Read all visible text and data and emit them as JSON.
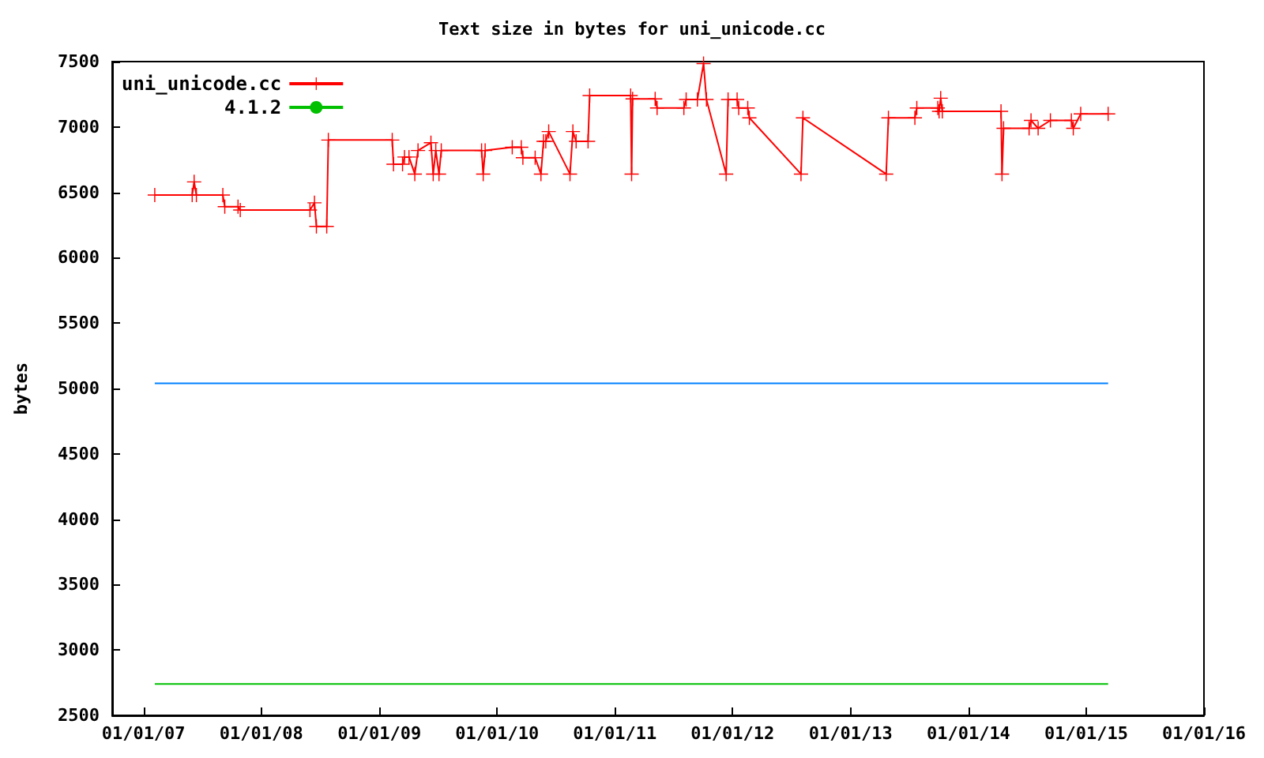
{
  "chart_data": {
    "type": "line",
    "title": "Text size in bytes for uni_unicode.cc",
    "ylabel": "bytes",
    "legend": "top left",
    "grid": false,
    "xlim": [
      "2006-09-26",
      "2016-01-01"
    ],
    "xticks": [
      {
        "value": "2007-01-01",
        "label": "01/01/07"
      },
      {
        "value": "2008-01-01",
        "label": "01/01/08"
      },
      {
        "value": "2009-01-01",
        "label": "01/01/09"
      },
      {
        "value": "2010-01-01",
        "label": "01/01/10"
      },
      {
        "value": "2011-01-01",
        "label": "01/01/11"
      },
      {
        "value": "2012-01-01",
        "label": "01/01/12"
      },
      {
        "value": "2013-01-01",
        "label": "01/01/13"
      },
      {
        "value": "2014-01-01",
        "label": "01/01/14"
      },
      {
        "value": "2015-01-01",
        "label": "01/01/15"
      },
      {
        "value": "2016-01-01",
        "label": "01/01/16"
      }
    ],
    "ylim": [
      2500,
      7500
    ],
    "yticks": [
      2500,
      3000,
      3500,
      4000,
      4500,
      5000,
      5500,
      6000,
      6500,
      7000,
      7500
    ],
    "series": [
      {
        "name": "uni_unicode.cc",
        "color": "#ff0000",
        "marker": "cross",
        "x": [
          "2007-02-05",
          "2007-06-01",
          "2007-06-07",
          "2007-06-14",
          "2007-09-04",
          "2007-09-10",
          "2007-10-21",
          "2007-10-28",
          "2008-05-31",
          "2008-06-14",
          "2008-06-20",
          "2008-07-22",
          "2008-07-27",
          "2009-02-10",
          "2009-02-14",
          "2009-03-14",
          "2009-03-20",
          "2009-04-03",
          "2009-04-21",
          "2009-05-01",
          "2009-06-10",
          "2009-06-17",
          "2009-06-25",
          "2009-07-05",
          "2009-07-12",
          "2009-11-14",
          "2009-11-19",
          "2009-11-25",
          "2010-02-17",
          "2010-03-17",
          "2010-03-22",
          "2010-04-29",
          "2010-05-17",
          "2010-05-25",
          "2010-06-01",
          "2010-06-10",
          "2010-08-15",
          "2010-08-24",
          "2010-09-03",
          "2010-10-10",
          "2010-10-15",
          "2011-02-19",
          "2011-02-22",
          "2011-02-25",
          "2011-05-06",
          "2011-05-12",
          "2011-08-03",
          "2011-08-10",
          "2011-09-14",
          "2011-10-03",
          "2011-10-12",
          "2011-12-12",
          "2011-12-18",
          "2012-01-15",
          "2012-01-20",
          "2012-02-17",
          "2012-02-22",
          "2012-07-31",
          "2012-08-06",
          "2013-04-21",
          "2013-04-28",
          "2013-07-19",
          "2013-07-25",
          "2013-09-28",
          "2013-10-02",
          "2013-10-07",
          "2013-10-12",
          "2014-04-12",
          "2014-04-15",
          "2014-04-20",
          "2014-07-08",
          "2014-07-14",
          "2014-08-05",
          "2014-09-12",
          "2014-11-16",
          "2014-11-22",
          "2014-12-15",
          "2015-03-10"
        ],
        "values": [
          6480,
          6480,
          6580,
          6480,
          6480,
          6390,
          6390,
          6365,
          6365,
          6420,
          6240,
          6240,
          6900,
          6900,
          6715,
          6715,
          6770,
          6770,
          6640,
          6820,
          6880,
          6640,
          6820,
          6640,
          6820,
          6820,
          6640,
          6820,
          6845,
          6845,
          6765,
          6765,
          6640,
          6890,
          6890,
          6965,
          6640,
          6965,
          6890,
          6890,
          7240,
          7240,
          6640,
          7215,
          7215,
          7145,
          7145,
          7210,
          7210,
          7485,
          7210,
          6640,
          7210,
          7210,
          7145,
          7145,
          7070,
          6640,
          7070,
          6640,
          7070,
          7070,
          7145,
          7145,
          7120,
          7220,
          7120,
          7120,
          6640,
          6990,
          6990,
          7050,
          6990,
          7050,
          7050,
          6990,
          7100,
          7100
        ]
      },
      {
        "name": "4.1.2",
        "color": "#00c000",
        "marker": "none",
        "x": [
          "2007-02-05",
          "2015-03-10"
        ],
        "values": [
          2740,
          2740
        ]
      },
      {
        "color": "#0080ff",
        "marker": "none",
        "x": [
          "2007-02-05",
          "2015-03-10"
        ],
        "values": [
          5040,
          5040
        ]
      }
    ]
  }
}
